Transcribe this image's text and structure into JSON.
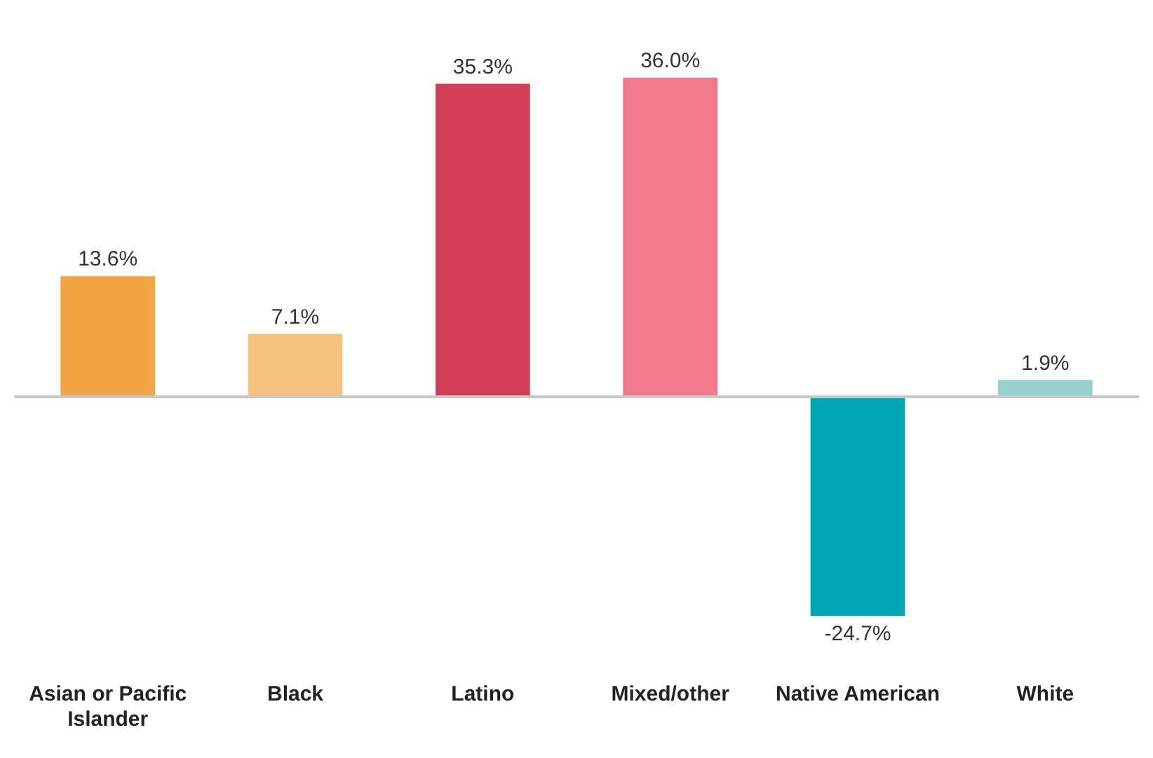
{
  "chart_data": {
    "type": "bar",
    "categories": [
      "Asian or Pacific Islander",
      "Black",
      "Latino",
      "Mixed/other",
      "Native American",
      "White"
    ],
    "values": [
      13.6,
      7.1,
      35.3,
      36.0,
      -24.7,
      1.9
    ],
    "value_labels": [
      "13.6%",
      "7.1%",
      "35.3%",
      "36.0%",
      "-24.7%",
      "1.9%"
    ],
    "colors": [
      "#f2a444",
      "#f5c27e",
      "#d03e55",
      "#f07a8c",
      "#00a6b3",
      "#95d1cf"
    ],
    "grid": false,
    "legend": false
  }
}
